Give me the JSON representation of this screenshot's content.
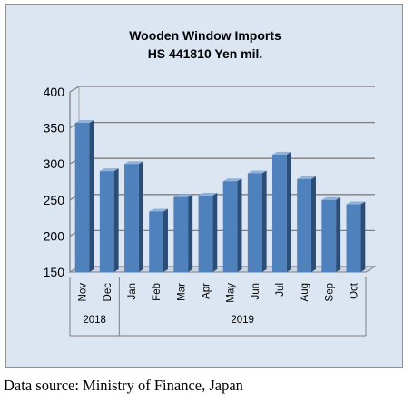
{
  "chart_data": {
    "type": "bar",
    "title": "Wooden Window Imports",
    "subtitle": "HS 441810 Yen mil.",
    "categories": [
      "Nov",
      "Dec",
      "Jan",
      "Feb",
      "Mar",
      "Apr",
      "May",
      "Jun",
      "Jul",
      "Aug",
      "Sep",
      "Oct"
    ],
    "values": [
      357,
      290,
      300,
      234,
      254,
      256,
      276,
      287,
      313,
      279,
      250,
      244
    ],
    "year_groups": [
      {
        "label": "2018",
        "count": 2
      },
      {
        "label": "2019",
        "count": 10
      }
    ],
    "ylim": [
      150,
      400
    ],
    "yticks": [
      150,
      200,
      250,
      300,
      350,
      400
    ],
    "grid": true,
    "legend": "none",
    "colors": {
      "bar_front": "#4f81bd",
      "bar_side": "#2c4d75",
      "bar_top": "#8fb1da",
      "plot_bg": "#dce6f2",
      "grid": "#7f7f7f"
    }
  },
  "caption": "Data source: Ministry of Finance, Japan"
}
